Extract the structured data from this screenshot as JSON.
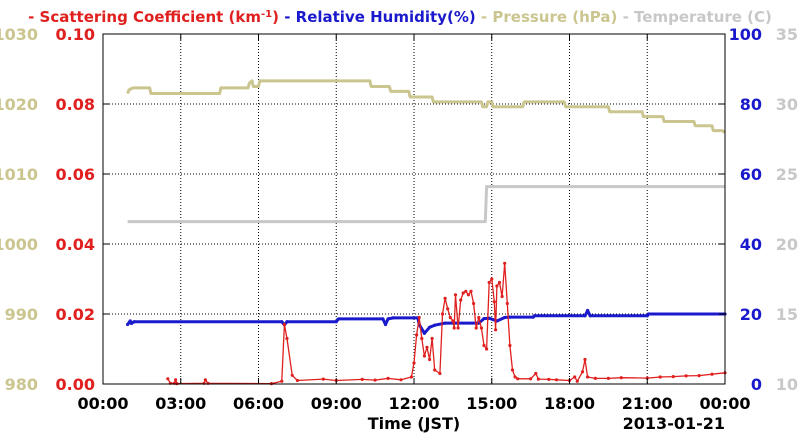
{
  "chart_data": {
    "type": "line",
    "title_segments": [
      {
        "text": "- Scattering Coefficient (km",
        "sup": "-1",
        "after": ")",
        "color": "#e0201f"
      },
      {
        "text": "- Relative Humidity(%)",
        "color": "#1a1acc"
      },
      {
        "text": "- Pressure (hPa)",
        "color": "#cbc58f"
      },
      {
        "text": "- Temperature (",
        "after": "C)",
        "color": "#c8c8c8"
      }
    ],
    "xlabel": "Time (JST)",
    "date_label": "2013-01-21",
    "x_ticks": [
      "00:00",
      "03:00",
      "06:00",
      "09:00",
      "12:00",
      "15:00",
      "18:00",
      "21:00",
      "00:00"
    ],
    "xlim": [
      0,
      24
    ],
    "grid": true,
    "axes": {
      "scattering": {
        "ticks": [
          "0.00",
          "0.02",
          "0.04",
          "0.06",
          "0.08",
          "0.10"
        ],
        "range": [
          0,
          0.1
        ],
        "color": "#e0201f"
      },
      "pressure": {
        "ticks": [
          "980",
          "990",
          "1000",
          "1010",
          "1020",
          "1030"
        ],
        "range": [
          980,
          1030
        ],
        "color": "#cbc58f"
      },
      "humidity": {
        "ticks": [
          "0",
          "20",
          "40",
          "60",
          "80",
          "100"
        ],
        "range": [
          0,
          100
        ],
        "color": "#1a1acc"
      },
      "temperature": {
        "ticks": [
          "10",
          "15",
          "20",
          "25",
          "30",
          "35"
        ],
        "range": [
          10,
          35
        ],
        "color": "#c8c8c8"
      }
    },
    "series": [
      {
        "name": "Pressure (hPa)",
        "axis": "pressure",
        "color": "#cbc58f",
        "step": true,
        "points": [
          [
            0.95,
            1021.5
          ],
          [
            1.0,
            1022.0
          ],
          [
            1.15,
            1022.3
          ],
          [
            1.8,
            1022.3
          ],
          [
            1.85,
            1021.5
          ],
          [
            4.5,
            1021.5
          ],
          [
            4.55,
            1022.3
          ],
          [
            5.6,
            1022.3
          ],
          [
            5.65,
            1023.0
          ],
          [
            5.75,
            1023.3
          ],
          [
            5.8,
            1022.5
          ],
          [
            6.0,
            1022.5
          ],
          [
            6.05,
            1023.3
          ],
          [
            8.6,
            1023.3
          ],
          [
            10.3,
            1023.3
          ],
          [
            10.35,
            1022.5
          ],
          [
            11.05,
            1022.5
          ],
          [
            11.1,
            1021.8
          ],
          [
            11.8,
            1021.8
          ],
          [
            11.85,
            1021.0
          ],
          [
            12.7,
            1021.0
          ],
          [
            12.75,
            1020.3
          ],
          [
            14.6,
            1020.3
          ],
          [
            14.65,
            1019.6
          ],
          [
            14.8,
            1019.6
          ],
          [
            14.85,
            1020.3
          ],
          [
            15.0,
            1020.3
          ],
          [
            15.05,
            1019.6
          ],
          [
            16.2,
            1019.6
          ],
          [
            16.25,
            1020.3
          ],
          [
            17.8,
            1020.3
          ],
          [
            17.85,
            1019.6
          ],
          [
            19.5,
            1019.6
          ],
          [
            19.55,
            1018.9
          ],
          [
            20.8,
            1018.9
          ],
          [
            20.85,
            1018.2
          ],
          [
            21.6,
            1018.2
          ],
          [
            21.65,
            1017.5
          ],
          [
            22.8,
            1017.5
          ],
          [
            22.85,
            1016.9
          ],
          [
            23.5,
            1016.9
          ],
          [
            23.55,
            1016.2
          ],
          [
            23.9,
            1016.2
          ],
          [
            24,
            1015.9
          ]
        ]
      },
      {
        "name": "Temperature (C)",
        "axis": "temperature",
        "color": "#c8c8c8",
        "step": true,
        "points": [
          [
            0.95,
            21.6
          ],
          [
            14.75,
            21.6
          ],
          [
            14.8,
            24.1
          ],
          [
            24,
            24.1
          ]
        ]
      },
      {
        "name": "Relative Humidity(%)",
        "axis": "humidity",
        "color": "#1a1acc",
        "step": false,
        "points": [
          [
            0.95,
            17.0
          ],
          [
            1.05,
            18.0
          ],
          [
            1.1,
            17.3
          ],
          [
            1.2,
            17.8
          ],
          [
            6.9,
            17.8
          ],
          [
            7.0,
            16.9
          ],
          [
            7.1,
            17.8
          ],
          [
            9.0,
            17.8
          ],
          [
            9.05,
            18.3
          ],
          [
            9.1,
            18.6
          ],
          [
            10.8,
            18.6
          ],
          [
            10.9,
            17.0
          ],
          [
            11.0,
            18.6
          ],
          [
            11.2,
            18.9
          ],
          [
            12.15,
            18.9
          ],
          [
            12.2,
            17.0
          ],
          [
            12.4,
            14.5
          ],
          [
            12.6,
            16.2
          ],
          [
            12.8,
            16.8
          ],
          [
            13.2,
            17.4
          ],
          [
            14.5,
            17.4
          ],
          [
            14.7,
            18.7
          ],
          [
            14.9,
            18.8
          ],
          [
            15.2,
            18.0
          ],
          [
            15.5,
            19.0
          ],
          [
            15.7,
            19.1
          ],
          [
            16.6,
            19.1
          ],
          [
            16.65,
            19.5
          ],
          [
            18.6,
            19.5
          ],
          [
            18.7,
            21.0
          ],
          [
            18.8,
            19.5
          ],
          [
            21.0,
            19.5
          ],
          [
            21.05,
            20.0
          ],
          [
            24,
            20.0
          ]
        ]
      },
      {
        "name": "Scattering Coefficient",
        "axis": "scattering",
        "color": "#e0201f",
        "step": false,
        "points": [
          [
            2.5,
            0.0015
          ],
          [
            2.6,
            0.0002
          ],
          [
            2.75,
            0.0002
          ],
          [
            2.8,
            0.0012
          ],
          [
            2.85,
            0.0001
          ],
          [
            3.9,
            0.0002
          ],
          [
            3.95,
            0.0012
          ],
          [
            4.05,
            0.0002
          ],
          [
            6.5,
            0.0001
          ],
          [
            6.9,
            0.0008
          ],
          [
            7.0,
            0.017
          ],
          [
            7.1,
            0.013
          ],
          [
            7.3,
            0.0025
          ],
          [
            7.5,
            0.001
          ],
          [
            8.5,
            0.0014
          ],
          [
            9.0,
            0.001
          ],
          [
            10.0,
            0.0013
          ],
          [
            10.5,
            0.0011
          ],
          [
            11.0,
            0.0016
          ],
          [
            11.5,
            0.0012
          ],
          [
            11.9,
            0.002
          ],
          [
            12.0,
            0.006
          ],
          [
            12.1,
            0.014
          ],
          [
            12.2,
            0.019
          ],
          [
            12.3,
            0.013
          ],
          [
            12.4,
            0.008
          ],
          [
            12.5,
            0.0105
          ],
          [
            12.6,
            0.007
          ],
          [
            12.7,
            0.013
          ],
          [
            12.8,
            0.004
          ],
          [
            13.0,
            0.003
          ],
          [
            13.1,
            0.02
          ],
          [
            13.2,
            0.0245
          ],
          [
            13.3,
            0.0215
          ],
          [
            13.4,
            0.019
          ],
          [
            13.5,
            0.018
          ],
          [
            13.55,
            0.016
          ],
          [
            13.6,
            0.0255
          ],
          [
            13.7,
            0.016
          ],
          [
            13.8,
            0.024
          ],
          [
            13.9,
            0.026
          ],
          [
            14.0,
            0.0265
          ],
          [
            14.1,
            0.0255
          ],
          [
            14.2,
            0.0265
          ],
          [
            14.3,
            0.023
          ],
          [
            14.4,
            0.016
          ],
          [
            14.5,
            0.019
          ],
          [
            14.6,
            0.016
          ],
          [
            14.7,
            0.011
          ],
          [
            14.8,
            0.01
          ],
          [
            14.9,
            0.029
          ],
          [
            15.0,
            0.03
          ],
          [
            15.1,
            0.0235
          ],
          [
            15.15,
            0.0155
          ],
          [
            15.2,
            0.028
          ],
          [
            15.3,
            0.029
          ],
          [
            15.4,
            0.025
          ],
          [
            15.5,
            0.0345
          ],
          [
            15.6,
            0.023
          ],
          [
            15.7,
            0.011
          ],
          [
            15.8,
            0.004
          ],
          [
            15.9,
            0.002
          ],
          [
            16.0,
            0.0015
          ],
          [
            16.5,
            0.0015
          ],
          [
            16.7,
            0.003
          ],
          [
            16.8,
            0.0014
          ],
          [
            17.2,
            0.0013
          ],
          [
            17.5,
            0.0012
          ],
          [
            18.0,
            0.001
          ],
          [
            18.2,
            0.002
          ],
          [
            18.3,
            0.0008
          ],
          [
            18.5,
            0.0035
          ],
          [
            18.6,
            0.007
          ],
          [
            18.7,
            0.002
          ],
          [
            19.0,
            0.0016
          ],
          [
            19.5,
            0.0016
          ],
          [
            20.0,
            0.0018
          ],
          [
            21.0,
            0.0017
          ],
          [
            21.5,
            0.002
          ],
          [
            22.0,
            0.0021
          ],
          [
            22.5,
            0.0023
          ],
          [
            23.0,
            0.0024
          ],
          [
            23.5,
            0.0028
          ],
          [
            24,
            0.0032
          ]
        ]
      }
    ]
  }
}
